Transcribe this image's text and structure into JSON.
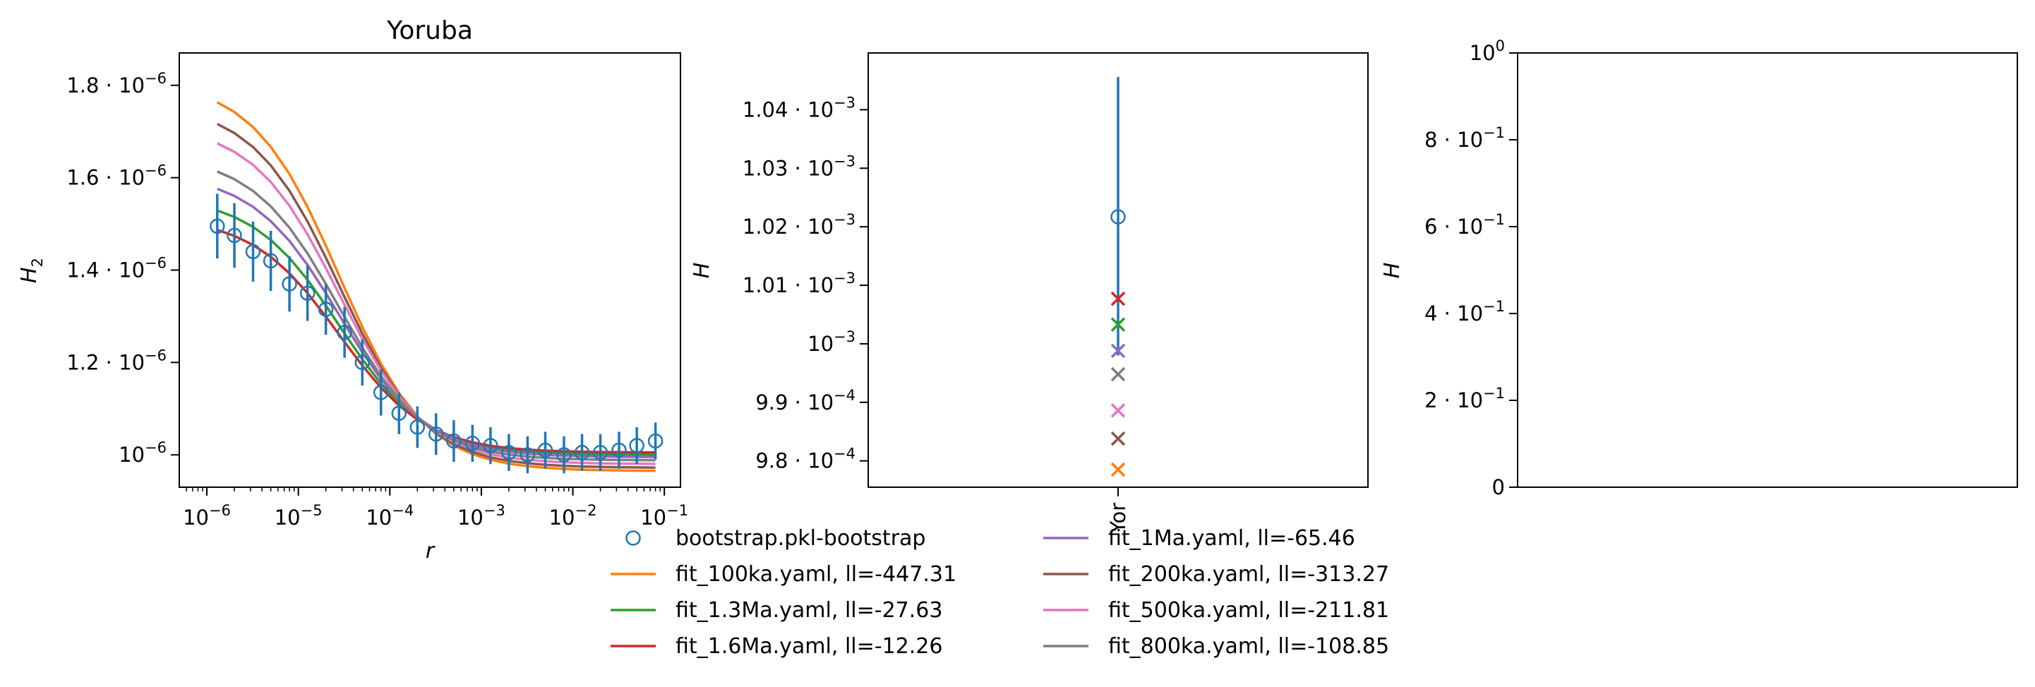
{
  "colors": {
    "bootstrap": "#1f77b4",
    "fit_100ka": "#ff7f0e",
    "fit_1.3Ma": "#2ca02c",
    "fit_1.6Ma": "#d62728",
    "fit_1Ma": "#9467bd",
    "fit_200ka": "#8c564b",
    "fit_500ka": "#e377c2",
    "fit_800ka": "#7f7f7f"
  },
  "chart_data": [
    {
      "type": "line",
      "title": "Yoruba",
      "xlabel": "r",
      "ylabel": "H",
      "ylabel_sub": "2",
      "xscale": "log",
      "xlim": [
        5e-07,
        0.15
      ],
      "ylim": [
        9.3e-07,
        1.87e-06
      ],
      "xticks": [
        {
          "value": 1e-06,
          "base": "10",
          "exp": "−6"
        },
        {
          "value": 1e-05,
          "base": "10",
          "exp": "−5"
        },
        {
          "value": 0.0001,
          "base": "10",
          "exp": "−4"
        },
        {
          "value": 0.001,
          "base": "10",
          "exp": "−3"
        },
        {
          "value": 0.01,
          "base": "10",
          "exp": "−2"
        },
        {
          "value": 0.1,
          "base": "10",
          "exp": "−1"
        }
      ],
      "yticks": [
        {
          "value": 1.8e-06,
          "mant": "1.8 · ",
          "base": "10",
          "exp": "−6"
        },
        {
          "value": 1.6e-06,
          "mant": "1.6 · ",
          "base": "10",
          "exp": "−6"
        },
        {
          "value": 1.4e-06,
          "mant": "1.4 · ",
          "base": "10",
          "exp": "−6"
        },
        {
          "value": 1.2e-06,
          "mant": "1.2 · ",
          "base": "10",
          "exp": "−6"
        },
        {
          "value": 1e-06,
          "mant": "",
          "base": "10",
          "exp": "−6"
        }
      ],
      "x": [
        1.3e-06,
        2e-06,
        3.2e-06,
        5e-06,
        8e-06,
        1.26e-05,
        2e-05,
        3.2e-05,
        5e-05,
        8e-05,
        0.000126,
        0.0002,
        0.00032,
        0.0005,
        0.0008,
        0.00126,
        0.002,
        0.0032,
        0.005,
        0.008,
        0.0126,
        0.02,
        0.032,
        0.05,
        0.08
      ],
      "bootstrap": {
        "name": "bootstrap.pkl-bootstrap",
        "y": [
          1.495e-06,
          1.475e-06,
          1.44e-06,
          1.42e-06,
          1.37e-06,
          1.35e-06,
          1.315e-06,
          1.265e-06,
          1.2e-06,
          1.135e-06,
          1.09e-06,
          1.06e-06,
          1.045e-06,
          1.03e-06,
          1.025e-06,
          1.02e-06,
          1.005e-06,
          1e-06,
          1.01e-06,
          1e-06,
          1.005e-06,
          1.005e-06,
          1.01e-06,
          1.02e-06,
          1.03e-06
        ],
        "err": [
          7e-08,
          7e-08,
          6.5e-08,
          6.5e-08,
          6e-08,
          6e-08,
          5.5e-08,
          5.5e-08,
          5e-08,
          5e-08,
          4.5e-08,
          4.5e-08,
          4.5e-08,
          4.5e-08,
          4e-08,
          4e-08,
          4e-08,
          4e-08,
          4e-08,
          4e-08,
          4e-08,
          4e-08,
          4e-08,
          4e-08,
          4e-08
        ]
      },
      "series": [
        {
          "name": "fit_100ka.yaml, ll=-447.31",
          "color_key": "fit_100ka",
          "top": 1.81e-06,
          "bottom": 9.65e-07
        },
        {
          "name": "fit_1.3Ma.yaml, ll=-27.63",
          "color_key": "fit_1.3Ma",
          "top": 1.56e-06,
          "bottom": 1e-06
        },
        {
          "name": "fit_1.6Ma.yaml, ll=-12.26",
          "color_key": "fit_1.6Ma",
          "top": 1.515e-06,
          "bottom": 1.005e-06
        },
        {
          "name": "fit_1Ma.yaml, ll=-65.46",
          "color_key": "fit_1Ma",
          "top": 1.61e-06,
          "bottom": 9.95e-07
        },
        {
          "name": "fit_200ka.yaml, ll=-313.27",
          "color_key": "fit_200ka",
          "top": 1.76e-06,
          "bottom": 9.72e-07
        },
        {
          "name": "fit_500ka.yaml, ll=-211.81",
          "color_key": "fit_500ka",
          "top": 1.715e-06,
          "bottom": 9.8e-07
        },
        {
          "name": "fit_800ka.yaml, ll=-108.85",
          "color_key": "fit_800ka",
          "top": 1.65e-06,
          "bottom": 9.88e-07
        }
      ]
    },
    {
      "type": "scatter",
      "ylabel": "H",
      "xticklabels": [
        "Yor"
      ],
      "ylim": [
        0.0009755,
        0.0010497
      ],
      "yticks": [
        {
          "value": 0.00104,
          "mant": "1.04 · ",
          "base": "10",
          "exp": "−3"
        },
        {
          "value": 0.00103,
          "mant": "1.03 · ",
          "base": "10",
          "exp": "−3"
        },
        {
          "value": 0.00102,
          "mant": "1.02 · ",
          "base": "10",
          "exp": "−3"
        },
        {
          "value": 0.00101,
          "mant": "1.01 · ",
          "base": "10",
          "exp": "−3"
        },
        {
          "value": 0.001,
          "mant": "",
          "base": "10",
          "exp": "−3"
        },
        {
          "value": 0.00099,
          "mant": "9.9 · ",
          "base": "10",
          "exp": "−4"
        },
        {
          "value": 0.00098,
          "mant": "9.8 · ",
          "base": "10",
          "exp": "−4"
        }
      ],
      "bootstrap": {
        "y": 0.0010217,
        "low": 0.000998,
        "high": 0.0010456
      },
      "points": [
        {
          "color_key": "fit_1.6Ma",
          "y": 0.0010077
        },
        {
          "color_key": "fit_1.3Ma",
          "y": 0.0010033
        },
        {
          "color_key": "fit_1Ma",
          "y": 0.0009988
        },
        {
          "color_key": "fit_800ka",
          "y": 0.0009948
        },
        {
          "color_key": "fit_500ka",
          "y": 0.0009886
        },
        {
          "color_key": "fit_200ka",
          "y": 0.0009838
        },
        {
          "color_key": "fit_100ka",
          "y": 0.0009785
        }
      ]
    },
    {
      "type": "scatter",
      "ylabel": "H",
      "ylim": [
        0,
        1
      ],
      "yticks": [
        {
          "value": 1.0,
          "mant": "",
          "base": "10",
          "exp": "0"
        },
        {
          "value": 0.8,
          "mant": "8 · ",
          "base": "10",
          "exp": "−1"
        },
        {
          "value": 0.6,
          "mant": "6 · ",
          "base": "10",
          "exp": "−1"
        },
        {
          "value": 0.4,
          "mant": "4 · ",
          "base": "10",
          "exp": "−1"
        },
        {
          "value": 0.2,
          "mant": "2 · ",
          "base": "10",
          "exp": "−1"
        },
        {
          "value": 0.0,
          "plain": "0"
        }
      ]
    }
  ],
  "legend": {
    "columns": [
      [
        {
          "label": "bootstrap.pkl-bootstrap",
          "color_key": "bootstrap",
          "marker": "circle"
        },
        {
          "label": "fit_100ka.yaml, ll=-447.31",
          "color_key": "fit_100ka",
          "marker": "line"
        },
        {
          "label": "fit_1.3Ma.yaml, ll=-27.63",
          "color_key": "fit_1.3Ma",
          "marker": "line"
        },
        {
          "label": "fit_1.6Ma.yaml, ll=-12.26",
          "color_key": "fit_1.6Ma",
          "marker": "line"
        }
      ],
      [
        {
          "label": "fit_1Ma.yaml, ll=-65.46",
          "color_key": "fit_1Ma",
          "marker": "line"
        },
        {
          "label": "fit_200ka.yaml, ll=-313.27",
          "color_key": "fit_200ka",
          "marker": "line"
        },
        {
          "label": "fit_500ka.yaml, ll=-211.81",
          "color_key": "fit_500ka",
          "marker": "line"
        },
        {
          "label": "fit_800ka.yaml, ll=-108.85",
          "color_key": "fit_800ka",
          "marker": "line"
        }
      ]
    ]
  }
}
